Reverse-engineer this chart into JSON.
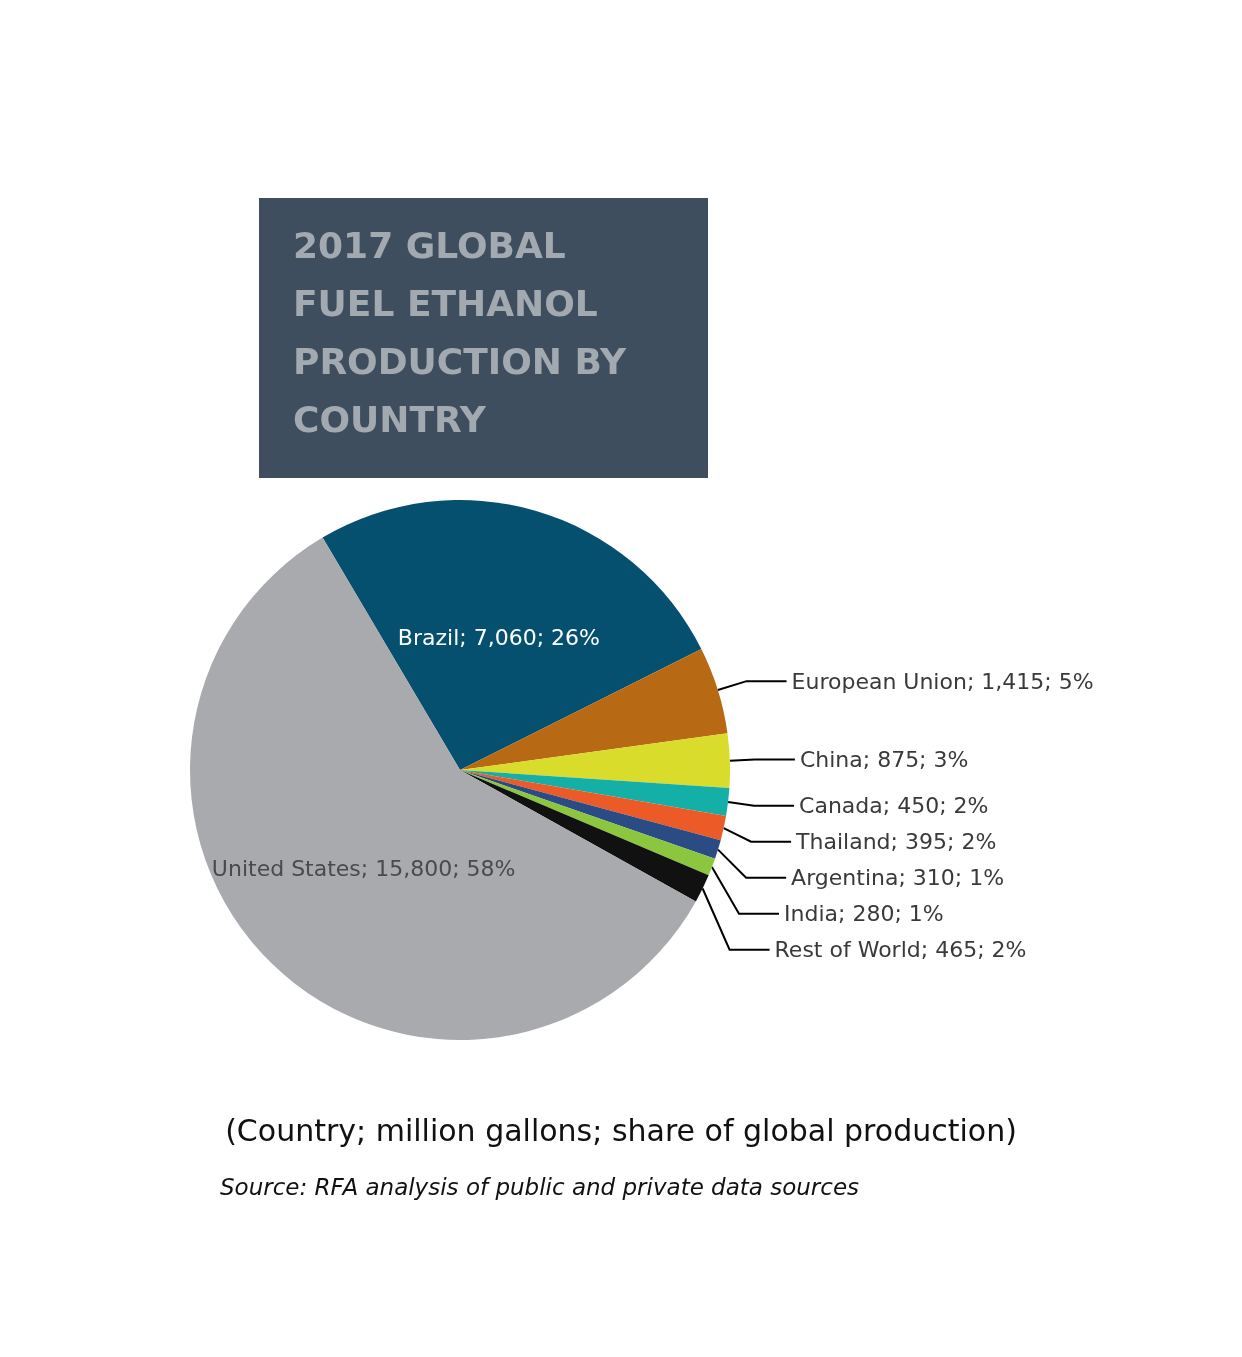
{
  "chart_data": {
    "type": "pie",
    "title": "2017 GLOBAL FUEL ETHANOL PRODUCTION BY COUNTRY",
    "categories": [
      "Brazil",
      "European Union",
      "China",
      "Canada",
      "Thailand",
      "Argentina",
      "India",
      "Rest of World",
      "United States"
    ],
    "values": [
      7060,
      1415,
      875,
      450,
      395,
      310,
      280,
      465,
      15800
    ],
    "value_labels": [
      "7,060; 26%",
      "1,415; 5%",
      "875; 3%",
      "450; 2%",
      "395; 2%",
      "310; 1%",
      "280; 1%",
      "465; 2%",
      "15,800; 58%"
    ],
    "colors": [
      "#06506f",
      "#b76a13",
      "#d9dc2a",
      "#14b0a8",
      "#eb5a27",
      "#2a4b84",
      "#8cc63f",
      "#111111",
      "#a9aaae"
    ],
    "legend": false,
    "annotations": [
      "(Country; million gallons; share of global production)",
      "Source: RFA analysis of public and private data sources"
    ]
  }
}
